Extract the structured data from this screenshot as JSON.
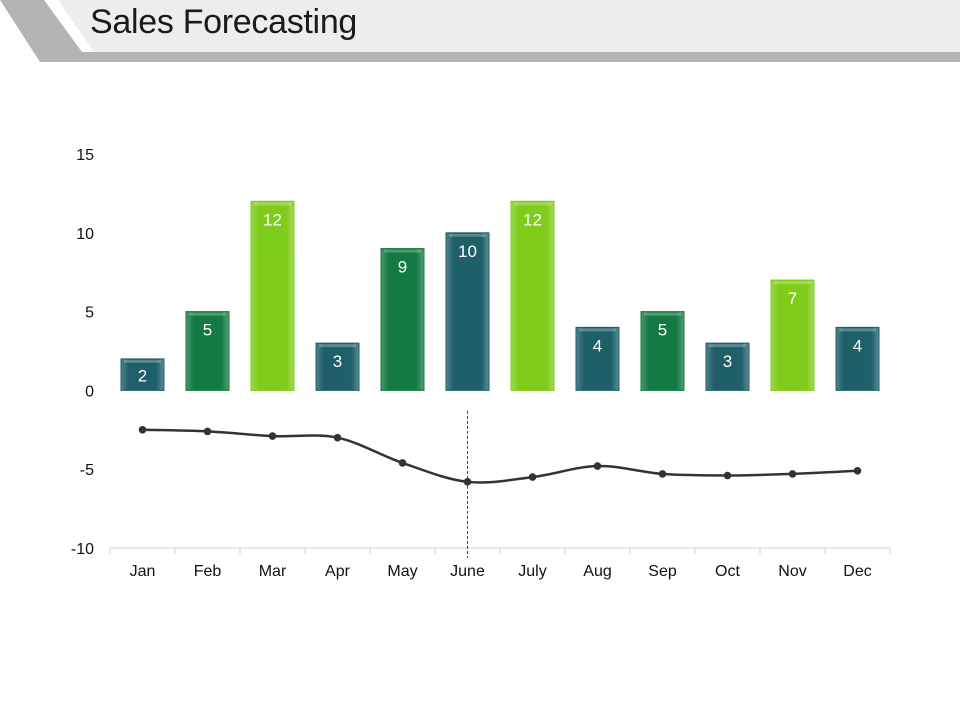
{
  "header": {
    "title": "Sales Forecasting"
  },
  "chart_data": {
    "type": "bar",
    "title": "Sales Forecasting",
    "categories": [
      "Jan",
      "Feb",
      "Mar",
      "Apr",
      "May",
      "June",
      "July",
      "Aug",
      "Sep",
      "Oct",
      "Nov",
      "Dec"
    ],
    "series": [
      {
        "name": "Sales",
        "type": "bar",
        "values": [
          2,
          5,
          12,
          3,
          9,
          10,
          12,
          4,
          5,
          3,
          7,
          4
        ],
        "colors": [
          "teal",
          "green",
          "lime",
          "teal",
          "green",
          "teal",
          "lime",
          "teal",
          "green",
          "teal",
          "lime",
          "teal"
        ],
        "show_labels": true
      },
      {
        "name": "Forecast",
        "type": "line",
        "values": [
          -2.5,
          -2.6,
          -2.9,
          -3.0,
          -4.6,
          -5.8,
          -5.5,
          -4.8,
          -5.3,
          -5.4,
          -5.3,
          -5.1
        ]
      }
    ],
    "ylim": [
      -10,
      15
    ],
    "yticks": [
      "-10",
      "-5",
      "0",
      "5",
      "10",
      "15"
    ],
    "ytick_values": [
      -10,
      -5,
      0,
      5,
      10,
      15
    ],
    "xlabel": "",
    "ylabel": "",
    "marker_line_category": "June",
    "legend": "none",
    "grid": false
  },
  "palette": {
    "teal": "#1f5f6a",
    "green": "#147a43",
    "lime": "#7fcc1a",
    "line": "#333333",
    "axis": "#d0d0d0",
    "banner_gray": "#ededed",
    "banner_accent": "#b4b4b4"
  }
}
